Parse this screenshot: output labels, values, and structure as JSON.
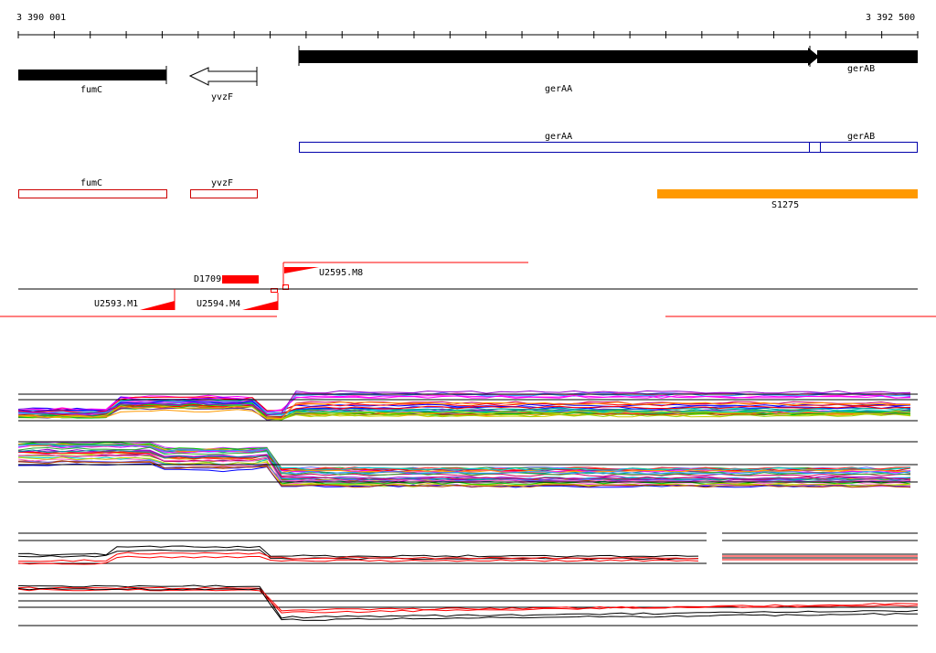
{
  "coordinates": {
    "start": "3 390 001",
    "end": "3 392 500"
  },
  "genes": {
    "fumC": "fumC",
    "yvzF": "yvzF",
    "gerAA": "gerAA",
    "gerAB": "gerAB"
  },
  "cds": {
    "gerAA": "gerAA",
    "gerAB": "gerAB",
    "fumC": "fumC",
    "yvzF": "yvzF"
  },
  "regions": {
    "S1275": "S1275"
  },
  "promoters": {
    "U2593": "U2593.M1",
    "U2594": "U2594.M4",
    "U2595": "U2595.M8",
    "D1709": "D1709"
  },
  "colors": {
    "gene_fill": "#000000",
    "cds_outline_blue": "#0000aa",
    "cds_outline_red": "#cc0000",
    "region_orange": "#ff9900",
    "promoter_red": "#ff0000",
    "trace_black": "#000000",
    "trace_red": "#ff0000"
  }
}
